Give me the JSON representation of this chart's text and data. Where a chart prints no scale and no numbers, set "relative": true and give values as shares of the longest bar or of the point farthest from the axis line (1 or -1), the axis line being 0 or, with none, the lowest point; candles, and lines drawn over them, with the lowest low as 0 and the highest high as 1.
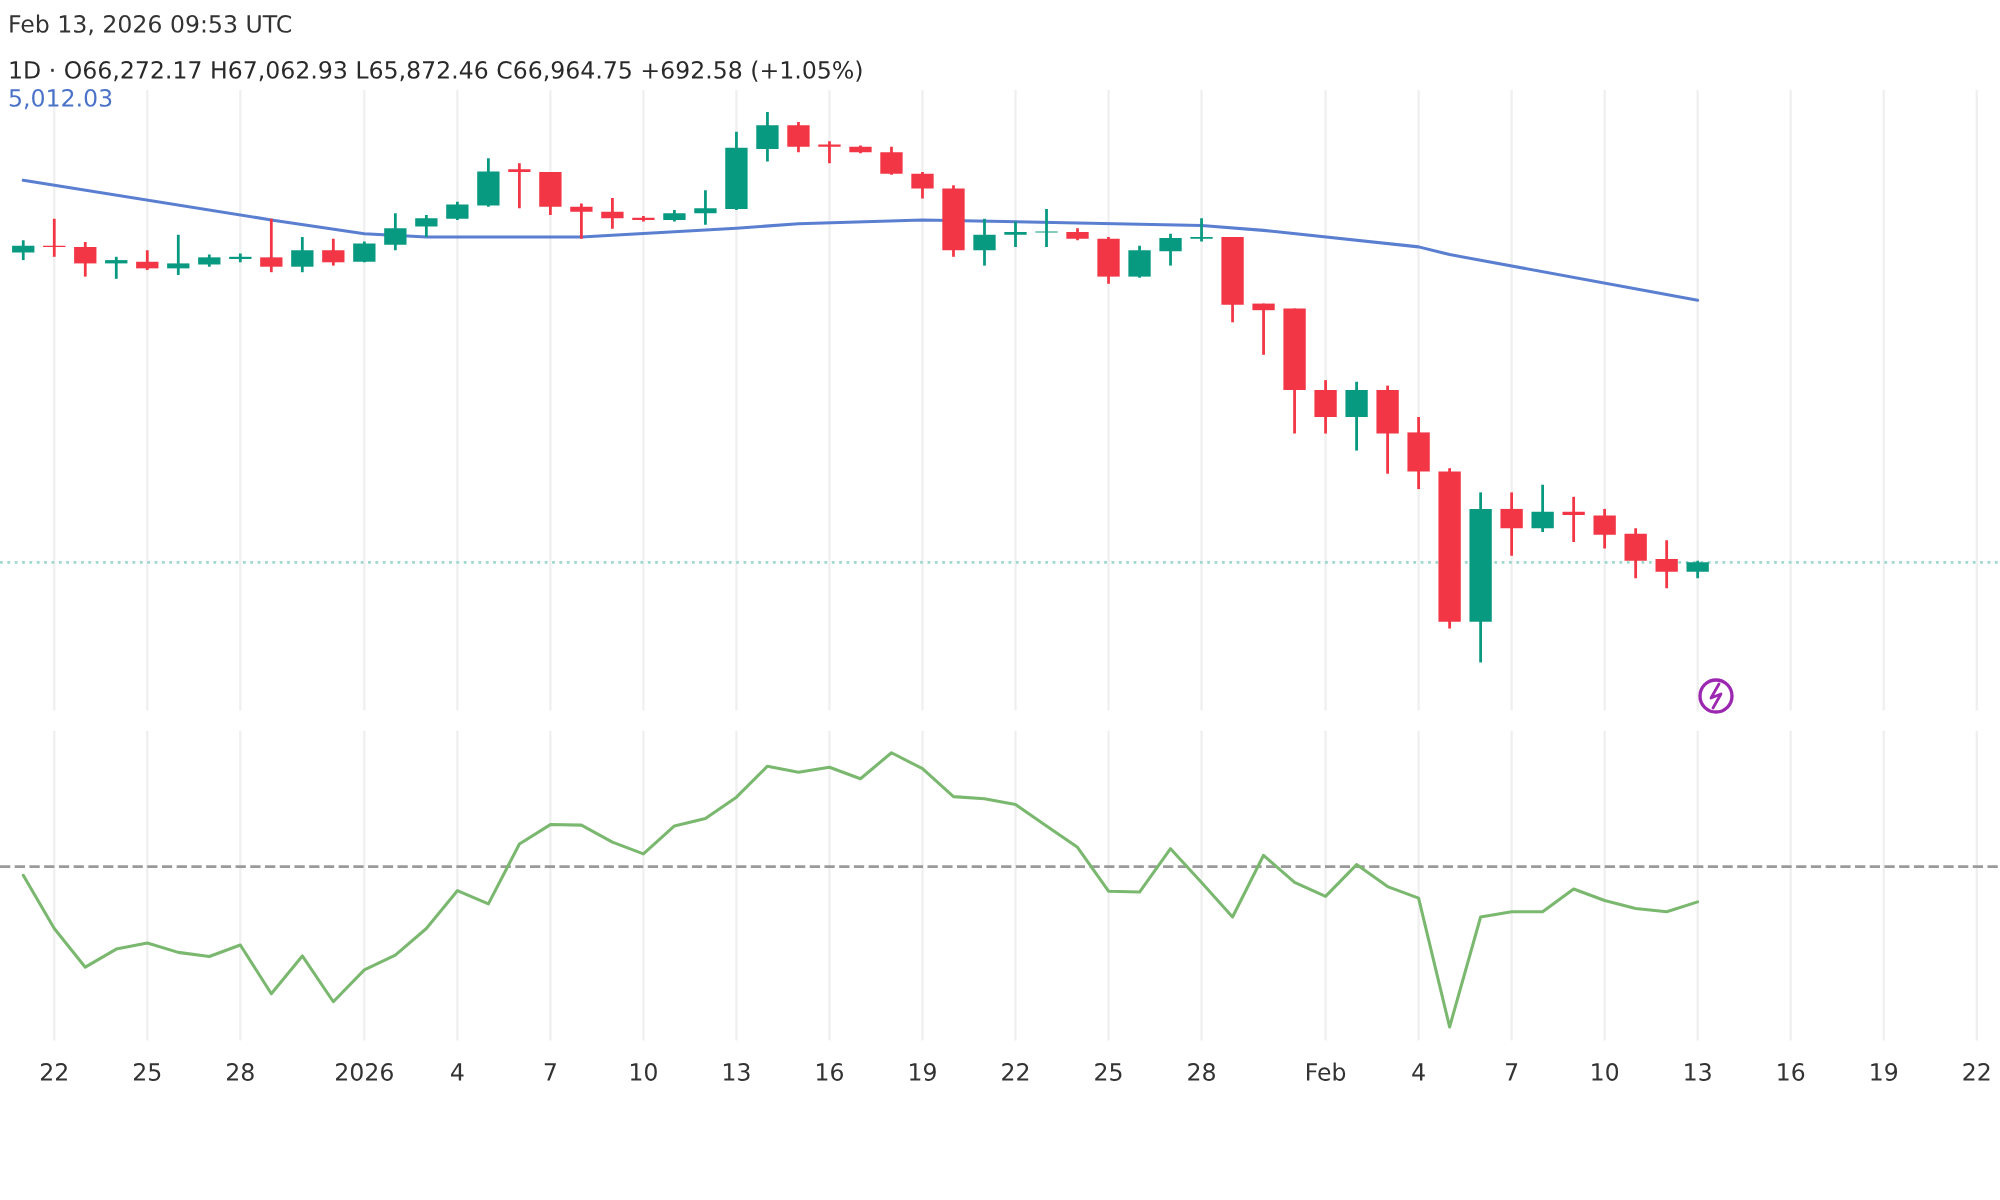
{
  "chart_data": [
    {
      "type": "candlestick",
      "title": "1D · O66,272.17 H67,062.93 L65,872.46 C66,964.75 +692.58 (+1.05%)",
      "subtitle": "5,012.03",
      "annotations": [
        "Feb 13, 2026 09:53 UTC"
      ],
      "relative": true,
      "grid": "x",
      "tick_labels": false,
      "xlim": [
        "2025-12-20T06:00",
        "2026-02-22T18:00"
      ],
      "xticks": [
        {
          "value": "2025-12-22",
          "label": null
        },
        {
          "value": "2025-12-25",
          "label": null
        },
        {
          "value": "2025-12-28",
          "label": null
        },
        {
          "value": "2026-01-01",
          "label": null
        },
        {
          "value": "2026-01-04",
          "label": null
        },
        {
          "value": "2026-01-07",
          "label": null
        },
        {
          "value": "2026-01-10",
          "label": null
        },
        {
          "value": "2026-01-13",
          "label": null
        },
        {
          "value": "2026-01-16",
          "label": null
        },
        {
          "value": "2026-01-19",
          "label": null
        },
        {
          "value": "2026-01-22",
          "label": null
        },
        {
          "value": "2026-01-25",
          "label": null
        },
        {
          "value": "2026-01-28",
          "label": null
        },
        {
          "value": "2026-02-01",
          "label": null
        },
        {
          "value": "2026-02-04",
          "label": null
        },
        {
          "value": "2026-02-07",
          "label": null
        },
        {
          "value": "2026-02-10",
          "label": null
        },
        {
          "value": "2026-02-13",
          "label": null
        },
        {
          "value": "2026-02-16",
          "label": null
        },
        {
          "value": "2026-02-19",
          "label": null
        },
        {
          "value": "2026-02-22",
          "label": null
        }
      ],
      "x": [
        "2025-12-21",
        "2025-12-22",
        "2025-12-23",
        "2025-12-24",
        "2025-12-25",
        "2025-12-26",
        "2025-12-27",
        "2025-12-28",
        "2025-12-29",
        "2025-12-30",
        "2025-12-31",
        "2026-01-01",
        "2026-01-02",
        "2026-01-03",
        "2026-01-04",
        "2026-01-05",
        "2026-01-06",
        "2026-01-07",
        "2026-01-08",
        "2026-01-09",
        "2026-01-10",
        "2026-01-11",
        "2026-01-12",
        "2026-01-13",
        "2026-01-14",
        "2026-01-15",
        "2026-01-16",
        "2026-01-17",
        "2026-01-18",
        "2026-01-19",
        "2026-01-20",
        "2026-01-21",
        "2026-01-22",
        "2026-01-23",
        "2026-01-24",
        "2026-01-25",
        "2026-01-26",
        "2026-01-27",
        "2026-01-28",
        "2026-01-29",
        "2026-01-30",
        "2026-01-31",
        "2026-02-01",
        "2026-02-02",
        "2026-02-03",
        "2026-02-04",
        "2026-02-05",
        "2026-02-06",
        "2026-02-07",
        "2026-02-08",
        "2026-02-09",
        "2026-02-10",
        "2026-02-11",
        "2026-02-12",
        "2026-02-13"
      ],
      "ohlc": [
        [
          0.745,
          0.767,
          0.731,
          0.757
        ],
        [
          0.757,
          0.806,
          0.737,
          0.755
        ],
        [
          0.755,
          0.764,
          0.701,
          0.725
        ],
        [
          0.725,
          0.737,
          0.697,
          0.731
        ],
        [
          0.728,
          0.749,
          0.713,
          0.716
        ],
        [
          0.716,
          0.777,
          0.704,
          0.725
        ],
        [
          0.723,
          0.741,
          0.719,
          0.736
        ],
        [
          0.733,
          0.743,
          0.727,
          0.737
        ],
        [
          0.736,
          0.806,
          0.709,
          0.719
        ],
        [
          0.719,
          0.773,
          0.709,
          0.749
        ],
        [
          0.749,
          0.77,
          0.721,
          0.727
        ],
        [
          0.728,
          0.765,
          0.727,
          0.761
        ],
        [
          0.759,
          0.816,
          0.749,
          0.789
        ],
        [
          0.792,
          0.813,
          0.773,
          0.807
        ],
        [
          0.806,
          0.837,
          0.804,
          0.832
        ],
        [
          0.83,
          0.916,
          0.828,
          0.892
        ],
        [
          0.896,
          0.907,
          0.825,
          0.891
        ],
        [
          0.891,
          0.891,
          0.813,
          0.828
        ],
        [
          0.828,
          0.834,
          0.77,
          0.819
        ],
        [
          0.819,
          0.844,
          0.788,
          0.807
        ],
        [
          0.808,
          0.811,
          0.801,
          0.804
        ],
        [
          0.804,
          0.822,
          0.801,
          0.816
        ],
        [
          0.816,
          0.858,
          0.795,
          0.825
        ],
        [
          0.824,
          0.964,
          0.822,
          0.935
        ],
        [
          0.933,
          1.0,
          0.91,
          0.976
        ],
        [
          0.976,
          0.982,
          0.927,
          0.937
        ],
        [
          0.941,
          0.947,
          0.907,
          0.937
        ],
        [
          0.937,
          0.939,
          0.925,
          0.927
        ],
        [
          0.927,
          0.937,
          0.886,
          0.888
        ],
        [
          0.888,
          0.891,
          0.843,
          0.861
        ],
        [
          0.861,
          0.867,
          0.737,
          0.749
        ],
        [
          0.749,
          0.806,
          0.721,
          0.777
        ],
        [
          0.777,
          0.801,
          0.755,
          0.782
        ],
        [
          0.781,
          0.824,
          0.755,
          0.783
        ],
        [
          0.782,
          0.789,
          0.767,
          0.77
        ],
        [
          0.77,
          0.773,
          0.688,
          0.701
        ],
        [
          0.701,
          0.757,
          0.699,
          0.749
        ],
        [
          0.747,
          0.779,
          0.721,
          0.771
        ],
        [
          0.77,
          0.807,
          0.765,
          0.773
        ],
        [
          0.773,
          0.773,
          0.618,
          0.65
        ],
        [
          0.652,
          0.652,
          0.559,
          0.64
        ],
        [
          0.643,
          0.643,
          0.416,
          0.495
        ],
        [
          0.495,
          0.513,
          0.416,
          0.446
        ],
        [
          0.446,
          0.51,
          0.385,
          0.495
        ],
        [
          0.495,
          0.503,
          0.343,
          0.416
        ],
        [
          0.418,
          0.446,
          0.315,
          0.347
        ],
        [
          0.347,
          0.353,
          0.062,
          0.074
        ],
        [
          0.074,
          0.309,
          0.0,
          0.279
        ],
        [
          0.279,
          0.309,
          0.194,
          0.244
        ],
        [
          0.244,
          0.323,
          0.237,
          0.274
        ],
        [
          0.274,
          0.301,
          0.219,
          0.268
        ],
        [
          0.267,
          0.279,
          0.207,
          0.232
        ],
        [
          0.234,
          0.244,
          0.153,
          0.185
        ],
        [
          0.188,
          0.222,
          0.135,
          0.165
        ],
        [
          0.165,
          0.185,
          0.153,
          0.182
        ]
      ],
      "colors": [
        "#089981",
        "#f23645",
        "#f23645",
        "#089981",
        "#f23645",
        "#089981",
        "#089981",
        "#089981",
        "#f23645",
        "#089981",
        "#f23645",
        "#089981",
        "#089981",
        "#089981",
        "#089981",
        "#089981",
        "#f23645",
        "#f23645",
        "#f23645",
        "#f23645",
        "#f23645",
        "#089981",
        "#089981",
        "#089981",
        "#089981",
        "#f23645",
        "#f23645",
        "#f23645",
        "#f23645",
        "#f23645",
        "#f23645",
        "#089981",
        "#089981",
        "#089981",
        "#f23645",
        "#f23645",
        "#089981",
        "#089981",
        "#089981",
        "#f23645",
        "#f23645",
        "#f23645",
        "#f23645",
        "#089981",
        "#f23645",
        "#f23645",
        "#f23645",
        "#089981",
        "#f23645",
        "#089981",
        "#f23645",
        "#f23645",
        "#f23645",
        "#f23645",
        "#089981"
      ],
      "series": [
        {
          "type": "line",
          "color": "#5b7fd0",
          "x": [
            "2025-12-21",
            "2025-12-29",
            "2026-01-01",
            "2026-01-03",
            "2026-01-08",
            "2026-01-13",
            "2026-01-15",
            "2026-01-19",
            "2026-01-28",
            "2026-01-30",
            "2026-02-04",
            "2026-02-05",
            "2026-02-13"
          ],
          "values": [
            0.876,
            0.804,
            0.779,
            0.773,
            0.773,
            0.789,
            0.797,
            0.804,
            0.794,
            0.785,
            0.755,
            0.741,
            0.658
          ]
        }
      ],
      "ref_lines": [
        {
          "axis": "y",
          "value": 0.182,
          "color": "#9fd8cf",
          "line_style": "dotted"
        }
      ]
    },
    {
      "type": "line",
      "relative": true,
      "grid": "x",
      "tick_labels": "x",
      "color": "#7bb86f",
      "xlim": [
        "2025-12-20T06:00",
        "2026-02-22T18:00"
      ],
      "xticks": [
        {
          "value": "2025-12-22",
          "label": "22"
        },
        {
          "value": "2025-12-25",
          "label": "25"
        },
        {
          "value": "2025-12-28",
          "label": "28"
        },
        {
          "value": "2026-01-01",
          "label": "2026"
        },
        {
          "value": "2026-01-04",
          "label": "4"
        },
        {
          "value": "2026-01-07",
          "label": "7"
        },
        {
          "value": "2026-01-10",
          "label": "10"
        },
        {
          "value": "2026-01-13",
          "label": "13"
        },
        {
          "value": "2026-01-16",
          "label": "16"
        },
        {
          "value": "2026-01-19",
          "label": "19"
        },
        {
          "value": "2026-01-22",
          "label": "22"
        },
        {
          "value": "2026-01-25",
          "label": "25"
        },
        {
          "value": "2026-01-28",
          "label": "28"
        },
        {
          "value": "2026-02-01",
          "label": "Feb"
        },
        {
          "value": "2026-02-04",
          "label": "4"
        },
        {
          "value": "2026-02-07",
          "label": "7"
        },
        {
          "value": "2026-02-10",
          "label": "10"
        },
        {
          "value": "2026-02-13",
          "label": "13"
        },
        {
          "value": "2026-02-16",
          "label": "16"
        },
        {
          "value": "2026-02-19",
          "label": "19"
        },
        {
          "value": "2026-02-22",
          "label": "22"
        }
      ],
      "x": [
        "2025-12-21",
        "2025-12-22",
        "2025-12-23",
        "2025-12-24",
        "2025-12-25",
        "2025-12-26",
        "2025-12-27",
        "2025-12-28",
        "2025-12-29",
        "2025-12-30",
        "2025-12-31",
        "2026-01-01",
        "2026-01-02",
        "2026-01-03",
        "2026-01-04",
        "2026-01-05",
        "2026-01-06",
        "2026-01-07",
        "2026-01-08",
        "2026-01-09",
        "2026-01-10",
        "2026-01-11",
        "2026-01-12",
        "2026-01-13",
        "2026-01-14",
        "2026-01-15",
        "2026-01-16",
        "2026-01-17",
        "2026-01-18",
        "2026-01-19",
        "2026-01-20",
        "2026-01-21",
        "2026-01-22",
        "2026-01-23",
        "2026-01-24",
        "2026-01-25",
        "2026-01-26",
        "2026-01-27",
        "2026-01-28",
        "2026-01-29",
        "2026-01-30",
        "2026-01-31",
        "2026-02-01",
        "2026-02-02",
        "2026-02-03",
        "2026-02-04",
        "2026-02-05",
        "2026-02-06",
        "2026-02-07",
        "2026-02-08",
        "2026-02-09",
        "2026-02-10",
        "2026-02-11",
        "2026-02-12",
        "2026-02-13"
      ],
      "values": [
        0.553,
        0.359,
        0.218,
        0.284,
        0.306,
        0.272,
        0.257,
        0.299,
        0.121,
        0.259,
        0.092,
        0.208,
        0.262,
        0.359,
        0.497,
        0.449,
        0.667,
        0.738,
        0.736,
        0.674,
        0.631,
        0.733,
        0.76,
        0.838,
        0.951,
        0.929,
        0.947,
        0.905,
        1.0,
        0.942,
        0.84,
        0.832,
        0.811,
        0.733,
        0.655,
        0.495,
        0.492,
        0.65,
        0.527,
        0.401,
        0.626,
        0.527,
        0.476,
        0.592,
        0.512,
        0.47,
        0.0,
        0.401,
        0.42,
        0.42,
        0.503,
        0.461,
        0.432,
        0.42,
        0.456
      ],
      "ref_lines": [
        {
          "axis": "y",
          "value": 0.585,
          "color": "#9a9a9a",
          "line_style": "dashed"
        }
      ]
    }
  ]
}
